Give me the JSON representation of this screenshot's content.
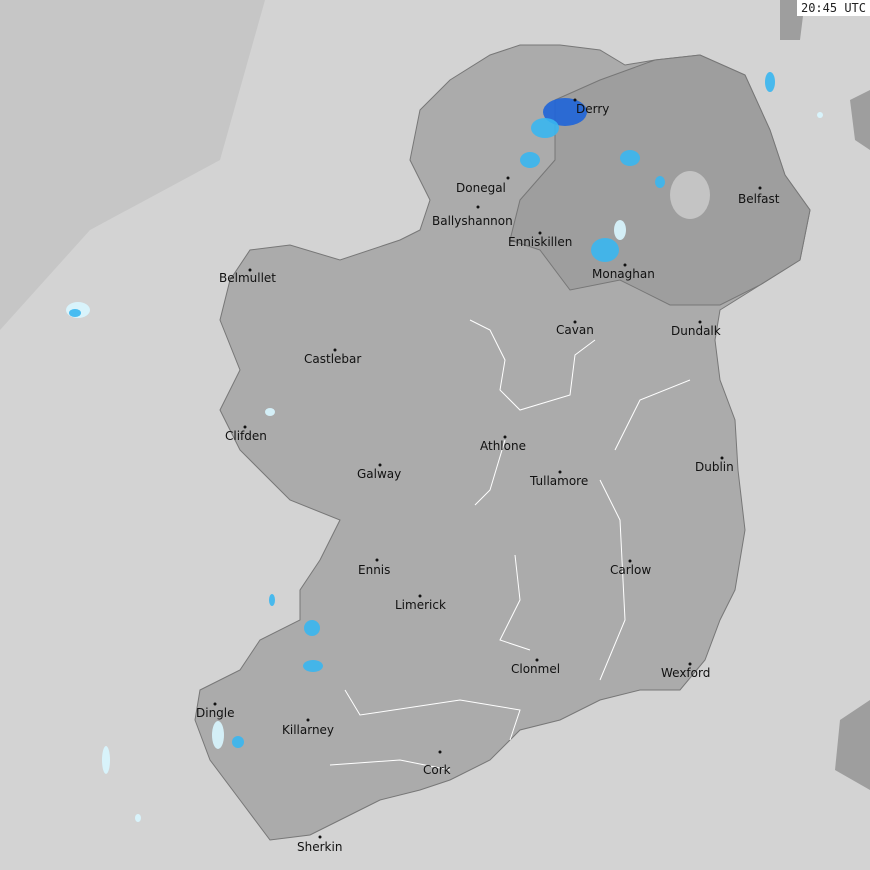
{
  "timestamp": "20:45 UTC",
  "colors": {
    "sea_far": "#c8c8c8",
    "sea_near": "#d3d3d3",
    "land_roi": "#ababab",
    "land_ni": "#9e9e9e",
    "rain_light": "#d8f6ff",
    "rain_mid": "#38b6f0",
    "rain_heavy": "#1e64d8"
  },
  "cities": [
    {
      "name": "Derry"
    },
    {
      "name": "Donegal"
    },
    {
      "name": "Ballyshannon"
    },
    {
      "name": "Enniskillen"
    },
    {
      "name": "Monaghan"
    },
    {
      "name": "Belfast"
    },
    {
      "name": "Belmullet"
    },
    {
      "name": "Castlebar"
    },
    {
      "name": "Cavan"
    },
    {
      "name": "Dundalk"
    },
    {
      "name": "Clifden"
    },
    {
      "name": "Athlone"
    },
    {
      "name": "Galway"
    },
    {
      "name": "Tullamore"
    },
    {
      "name": "Dublin"
    },
    {
      "name": "Ennis"
    },
    {
      "name": "Carlow"
    },
    {
      "name": "Limerick"
    },
    {
      "name": "Clonmel"
    },
    {
      "name": "Wexford"
    },
    {
      "name": "Dingle"
    },
    {
      "name": "Killarney"
    },
    {
      "name": "Cork"
    },
    {
      "name": "Sherkin"
    }
  ]
}
